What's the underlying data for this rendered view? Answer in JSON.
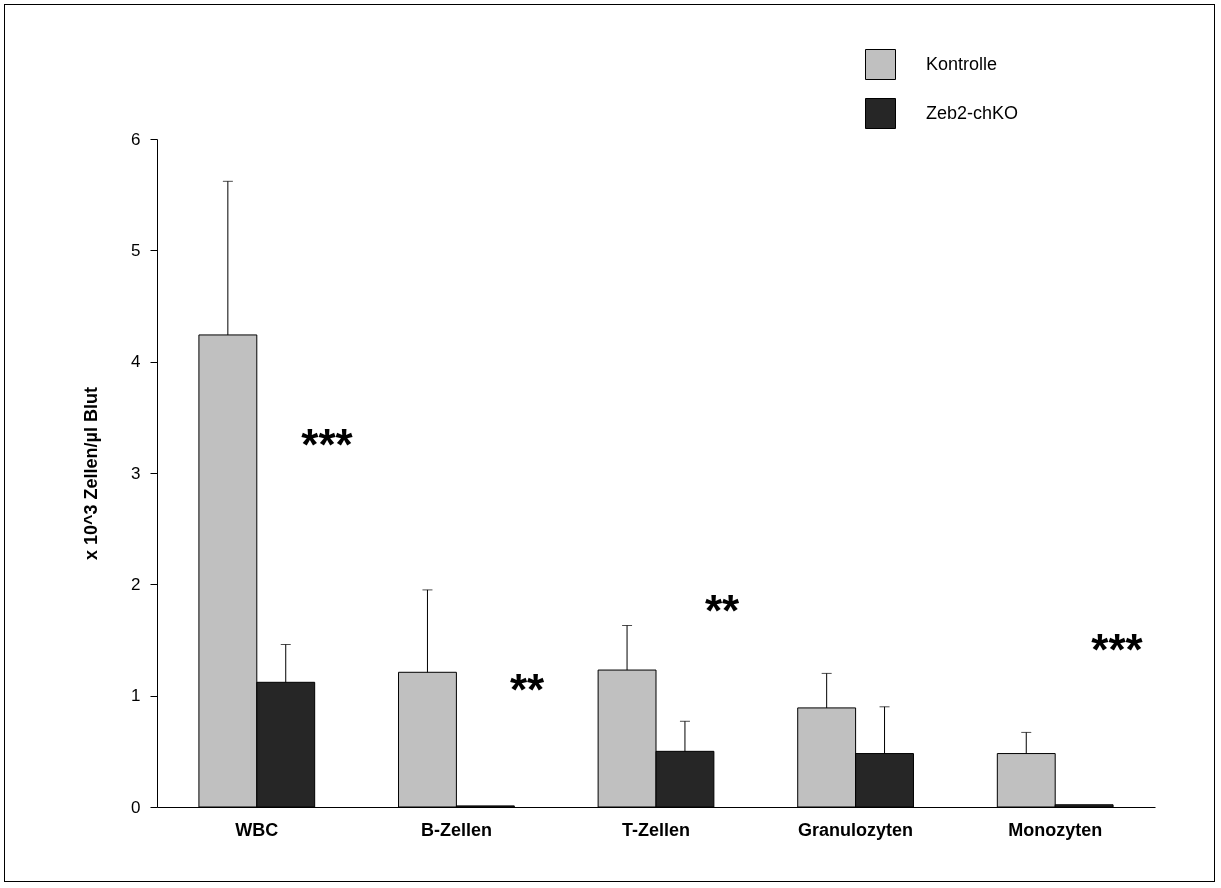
{
  "chart_data": {
    "type": "bar",
    "ylabel": "x 10^3 Zellen/µl Blut",
    "categories": [
      "WBC",
      "B-Zellen",
      "T-Zellen",
      "Granulozyten",
      "Monozyten"
    ],
    "series": [
      {
        "name": "Kontrolle",
        "color": "#c0c0c0",
        "values": [
          4.24,
          1.21,
          1.23,
          0.89,
          0.48
        ],
        "errors": [
          [
            4.24,
            5.62
          ],
          [
            1.21,
            1.95
          ],
          [
            1.23,
            1.63
          ],
          [
            0.89,
            1.2
          ],
          [
            0.48,
            0.67
          ]
        ]
      },
      {
        "name": "Zeb2-chKO",
        "color": "#262626",
        "values": [
          1.12,
          0.01,
          0.5,
          0.48,
          0.02
        ],
        "errors": [
          [
            1.12,
            1.46
          ],
          null,
          [
            0.5,
            0.77
          ],
          [
            0.48,
            0.9
          ],
          null
        ]
      }
    ],
    "ylim": [
      0,
      6
    ],
    "yticks": [
      0,
      1,
      2,
      3,
      4,
      5,
      6
    ],
    "grid": false,
    "legend": "top right",
    "annotations": [
      "***",
      "**",
      "**",
      "***"
    ]
  }
}
